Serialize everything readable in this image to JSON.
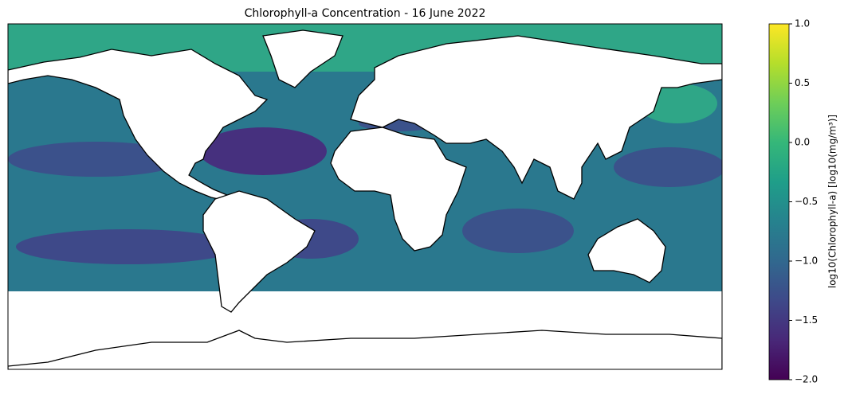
{
  "title": "Chlorophyll-a Concentration - 16 June 2022",
  "colorbar": {
    "label": "log10(Chlorophyll-a) [log10(mg/m³)]",
    "lim": [
      -2,
      1
    ],
    "colors": [
      "#440154",
      "#482878",
      "#3e4989",
      "#31688e",
      "#26828e",
      "#1f9e89",
      "#35b779",
      "#6ece58",
      "#b5de2b",
      "#fde725"
    ],
    "ticks": [
      {
        "value": 1,
        "label": "1.0"
      },
      {
        "value": 0.5,
        "label": "0.5"
      },
      {
        "value": 0,
        "label": "0.0"
      },
      {
        "value": -0.5,
        "label": "−0.5"
      },
      {
        "value": -1,
        "label": "−1.0"
      },
      {
        "value": -1.5,
        "label": "−1.5"
      },
      {
        "value": -2,
        "label": "−2.0"
      }
    ]
  }
}
